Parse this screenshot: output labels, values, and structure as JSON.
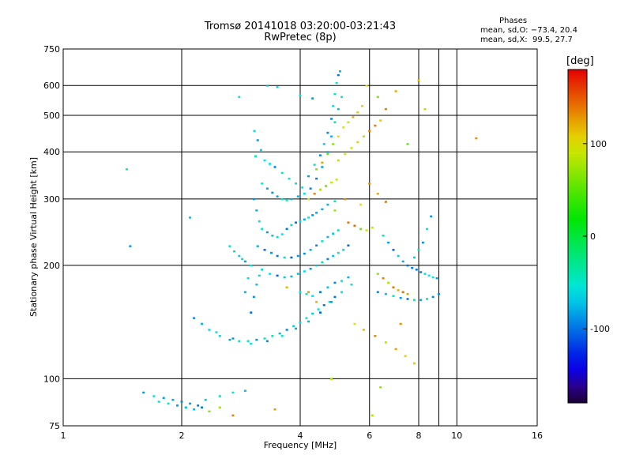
{
  "chart_data": {
    "type": "scatter",
    "title": "Tromsø 20141018 03:20:00-03:21:43",
    "subtitle": "RwPretec (8p)",
    "xlabel": "Frequency [MHz]",
    "ylabel": "Stationary phase Virtual Height [km]",
    "x_scale": "log",
    "y_scale": "log",
    "xlim": [
      1,
      16
    ],
    "ylim": [
      75,
      750
    ],
    "x_ticks": [
      1,
      2,
      4,
      6,
      8,
      10,
      16
    ],
    "x_ticks_minor": [
      9
    ],
    "y_ticks": [
      75,
      100,
      200,
      300,
      400,
      500,
      600,
      750
    ],
    "grid": true,
    "colorbar": {
      "label": "[deg]",
      "range": [
        -180,
        180
      ],
      "ticks": [
        100,
        0,
        -100
      ]
    },
    "stats": {
      "header": "Phases",
      "o_line": "mean, sd,O: −73.4, 20.4",
      "x_line": "mean, sd,X:  99.5, 27.7"
    },
    "series": [
      {
        "mode": "O",
        "phase_mean": -73.4,
        "phase_sd": 20.4,
        "points": [
          [
            3.06,
            455
          ],
          [
            3.12,
            430
          ],
          [
            3.18,
            405
          ],
          [
            3.08,
            390
          ],
          [
            3.25,
            380
          ],
          [
            3.35,
            372
          ],
          [
            3.45,
            365
          ],
          [
            3.6,
            352
          ],
          [
            3.75,
            340
          ],
          [
            3.9,
            330
          ],
          [
            4.05,
            322
          ],
          [
            4.2,
            345
          ],
          [
            4.35,
            370
          ],
          [
            4.5,
            392
          ],
          [
            4.6,
            420
          ],
          [
            4.7,
            450
          ],
          [
            4.8,
            490
          ],
          [
            4.85,
            530
          ],
          [
            4.9,
            570
          ],
          [
            4.95,
            610
          ],
          [
            5.0,
            640
          ],
          [
            5.05,
            655
          ],
          [
            3.2,
            330
          ],
          [
            3.3,
            320
          ],
          [
            3.4,
            312
          ],
          [
            3.5,
            305
          ],
          [
            3.6,
            300
          ],
          [
            3.7,
            298
          ],
          [
            3.8,
            300
          ],
          [
            3.95,
            305
          ],
          [
            4.1,
            310
          ],
          [
            4.25,
            320
          ],
          [
            4.4,
            340
          ],
          [
            4.55,
            365
          ],
          [
            4.7,
            400
          ],
          [
            4.8,
            440
          ],
          [
            4.9,
            480
          ],
          [
            5.0,
            520
          ],
          [
            5.1,
            560
          ],
          [
            3.05,
            300
          ],
          [
            3.1,
            280
          ],
          [
            3.15,
            262
          ],
          [
            3.2,
            250
          ],
          [
            3.3,
            245
          ],
          [
            3.4,
            240
          ],
          [
            3.5,
            238
          ],
          [
            3.6,
            242
          ],
          [
            3.7,
            250
          ],
          [
            3.8,
            256
          ],
          [
            3.9,
            260
          ],
          [
            4.0,
            262
          ],
          [
            4.1,
            265
          ],
          [
            4.2,
            268
          ],
          [
            4.3,
            272
          ],
          [
            4.4,
            276
          ],
          [
            4.55,
            282
          ],
          [
            4.7,
            290
          ],
          [
            4.9,
            296
          ],
          [
            3.12,
            225
          ],
          [
            3.25,
            220
          ],
          [
            3.38,
            216
          ],
          [
            3.5,
            212
          ],
          [
            3.65,
            210
          ],
          [
            3.8,
            210
          ],
          [
            3.95,
            212
          ],
          [
            4.1,
            215
          ],
          [
            4.25,
            220
          ],
          [
            4.4,
            226
          ],
          [
            4.55,
            232
          ],
          [
            4.7,
            238
          ],
          [
            4.85,
            243
          ],
          [
            5.0,
            248
          ],
          [
            3.2,
            195
          ],
          [
            3.35,
            190
          ],
          [
            3.5,
            188
          ],
          [
            3.65,
            186
          ],
          [
            3.8,
            187
          ],
          [
            3.95,
            190
          ],
          [
            4.1,
            193
          ],
          [
            4.25,
            196
          ],
          [
            4.4,
            200
          ],
          [
            4.55,
            204
          ],
          [
            4.7,
            208
          ],
          [
            4.85,
            212
          ],
          [
            5.0,
            216
          ],
          [
            5.15,
            220
          ],
          [
            5.3,
            226
          ],
          [
            2.35,
            135
          ],
          [
            2.5,
            130
          ],
          [
            2.65,
            127
          ],
          [
            2.8,
            126
          ],
          [
            2.95,
            126
          ],
          [
            3.1,
            127
          ],
          [
            3.25,
            128
          ],
          [
            3.4,
            130
          ],
          [
            3.55,
            132
          ],
          [
            3.7,
            135
          ],
          [
            3.85,
            138
          ],
          [
            4.0,
            141
          ],
          [
            4.15,
            145
          ],
          [
            4.3,
            149
          ],
          [
            4.45,
            153
          ],
          [
            4.6,
            157
          ],
          [
            4.75,
            160
          ],
          [
            4.9,
            165
          ],
          [
            2.15,
            145
          ],
          [
            2.25,
            140
          ],
          [
            2.45,
            133
          ],
          [
            2.7,
            128
          ],
          [
            3.0,
            124
          ],
          [
            3.3,
            126
          ],
          [
            3.6,
            130
          ],
          [
            3.9,
            136
          ],
          [
            4.2,
            142
          ],
          [
            4.5,
            150
          ],
          [
            4.8,
            160
          ],
          [
            5.1,
            170
          ],
          [
            5.4,
            178
          ],
          [
            2.65,
            225
          ],
          [
            2.72,
            218
          ],
          [
            2.8,
            212
          ],
          [
            2.85,
            208
          ],
          [
            2.9,
            205
          ],
          [
            3.0,
            150
          ],
          [
            3.05,
            165
          ],
          [
            3.1,
            178
          ],
          [
            3.15,
            188
          ],
          [
            3.0,
            200
          ],
          [
            2.95,
            185
          ],
          [
            2.9,
            170
          ],
          [
            4.0,
            170
          ],
          [
            4.15,
            168
          ],
          [
            4.3,
            166
          ],
          [
            4.5,
            170
          ],
          [
            4.7,
            175
          ],
          [
            4.9,
            180
          ],
          [
            5.1,
            182
          ],
          [
            5.3,
            186
          ],
          [
            1.6,
            92
          ],
          [
            1.7,
            90
          ],
          [
            1.8,
            89
          ],
          [
            1.9,
            88
          ],
          [
            2.0,
            87
          ],
          [
            2.1,
            86
          ],
          [
            2.2,
            85
          ],
          [
            2.3,
            88
          ],
          [
            2.5,
            90
          ],
          [
            2.7,
            92
          ],
          [
            2.9,
            93
          ],
          [
            1.75,
            87
          ],
          [
            1.85,
            86
          ],
          [
            1.95,
            85
          ],
          [
            2.05,
            84
          ],
          [
            2.15,
            83
          ],
          [
            2.25,
            84
          ],
          [
            6.5,
            240
          ],
          [
            6.7,
            230
          ],
          [
            6.9,
            220
          ],
          [
            7.1,
            212
          ],
          [
            7.3,
            205
          ],
          [
            7.5,
            200
          ],
          [
            7.7,
            197
          ],
          [
            7.9,
            195
          ],
          [
            8.1,
            192
          ],
          [
            8.3,
            190
          ],
          [
            8.5,
            188
          ],
          [
            8.7,
            186
          ],
          [
            8.9,
            185
          ],
          [
            6.3,
            170
          ],
          [
            6.6,
            168
          ],
          [
            6.9,
            166
          ],
          [
            7.2,
            164
          ],
          [
            7.5,
            163
          ],
          [
            7.8,
            162
          ],
          [
            8.1,
            162
          ],
          [
            8.4,
            163
          ],
          [
            8.7,
            165
          ],
          [
            9.0,
            168
          ],
          [
            7.8,
            210
          ],
          [
            8.0,
            220
          ],
          [
            8.2,
            230
          ],
          [
            8.4,
            250
          ],
          [
            8.6,
            270
          ],
          [
            1.45,
            360
          ],
          [
            1.48,
            225
          ],
          [
            2.1,
            268
          ],
          [
            2.8,
            560
          ],
          [
            3.3,
            600
          ],
          [
            3.5,
            595
          ],
          [
            4.0,
            565
          ],
          [
            4.3,
            555
          ]
        ]
      },
      {
        "mode": "X",
        "phase_mean": 99.5,
        "phase_sd": 27.7,
        "points": [
          [
            4.4,
            360
          ],
          [
            4.55,
            375
          ],
          [
            4.7,
            395
          ],
          [
            4.85,
            420
          ],
          [
            5.0,
            440
          ],
          [
            5.15,
            465
          ],
          [
            5.3,
            480
          ],
          [
            5.45,
            495
          ],
          [
            5.6,
            510
          ],
          [
            5.75,
            530
          ],
          [
            5.0,
            380
          ],
          [
            5.2,
            395
          ],
          [
            5.4,
            410
          ],
          [
            5.6,
            425
          ],
          [
            5.8,
            440
          ],
          [
            6.0,
            455
          ],
          [
            6.2,
            470
          ],
          [
            6.4,
            485
          ],
          [
            4.2,
            300
          ],
          [
            4.35,
            310
          ],
          [
            4.5,
            318
          ],
          [
            4.65,
            325
          ],
          [
            4.8,
            332
          ],
          [
            4.95,
            338
          ],
          [
            5.3,
            260
          ],
          [
            5.5,
            255
          ],
          [
            5.7,
            250
          ],
          [
            5.9,
            248
          ],
          [
            6.1,
            252
          ],
          [
            6.3,
            190
          ],
          [
            6.5,
            185
          ],
          [
            6.7,
            180
          ],
          [
            6.9,
            175
          ],
          [
            7.1,
            172
          ],
          [
            7.3,
            170
          ],
          [
            7.5,
            168
          ],
          [
            5.5,
            140
          ],
          [
            5.8,
            135
          ],
          [
            6.2,
            130
          ],
          [
            6.6,
            125
          ],
          [
            7.0,
            120
          ],
          [
            7.4,
            115
          ],
          [
            7.8,
            110
          ],
          [
            5.9,
            600
          ],
          [
            6.3,
            560
          ],
          [
            6.6,
            520
          ],
          [
            7.0,
            580
          ],
          [
            7.5,
            420
          ],
          [
            8.0,
            620
          ],
          [
            8.3,
            520
          ],
          [
            6.0,
            330
          ],
          [
            6.3,
            310
          ],
          [
            6.6,
            295
          ],
          [
            5.7,
            290
          ],
          [
            5.2,
            300
          ],
          [
            4.9,
            280
          ],
          [
            2.35,
            82
          ],
          [
            2.5,
            84
          ],
          [
            2.7,
            80
          ],
          [
            3.45,
            83
          ],
          [
            4.8,
            100
          ],
          [
            6.1,
            80
          ],
          [
            11.2,
            435
          ],
          [
            4.2,
            170
          ],
          [
            4.4,
            160
          ],
          [
            3.7,
            175
          ],
          [
            6.4,
            95
          ],
          [
            7.2,
            140
          ]
        ]
      }
    ]
  }
}
